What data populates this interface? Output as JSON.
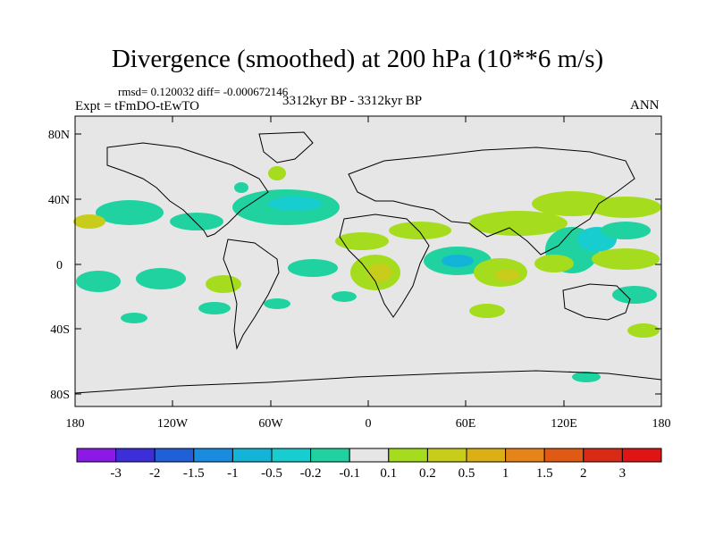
{
  "title": "Divergence (smoothed) at 200 hPa (10**6 m/s)",
  "stats": "rmsd= 0.120032 diff= -0.000672146",
  "experiment": "Expt = tFmDO-tEwTO",
  "period": "3312kyr BP - 3312kyr BP",
  "season": "ANN",
  "lat_labels": [
    "80N",
    "40N",
    "0",
    "40S",
    "80S"
  ],
  "lon_labels": [
    "180",
    "120W",
    "60W",
    "0",
    "60E",
    "120E",
    "180"
  ],
  "colorbar": {
    "labels": [
      "-3",
      "-2",
      "-1.5",
      "-1",
      "-0.5",
      "-0.2",
      "-0.1",
      "0.1",
      "0.2",
      "0.5",
      "1",
      "1.5",
      "2",
      "3"
    ],
    "colors": [
      "#8c1ae6",
      "#3c2ed8",
      "#1f5fd8",
      "#1a8ce0",
      "#14b4d8",
      "#18cdd0",
      "#1fd2a0",
      "#e6e6e6",
      "#a6dc1e",
      "#c8cc1a",
      "#dcb014",
      "#e6841a",
      "#e05a14",
      "#d82a14",
      "#e01414"
    ]
  },
  "field_colors": {
    "background": "#e6e6e6",
    "positive_weak": "#a6dc1e",
    "positive_mid": "#c8cc1a",
    "negative_weak": "#1fd2a0",
    "negative_mid": "#18cdd0",
    "negative_strong": "#14b4d8"
  }
}
